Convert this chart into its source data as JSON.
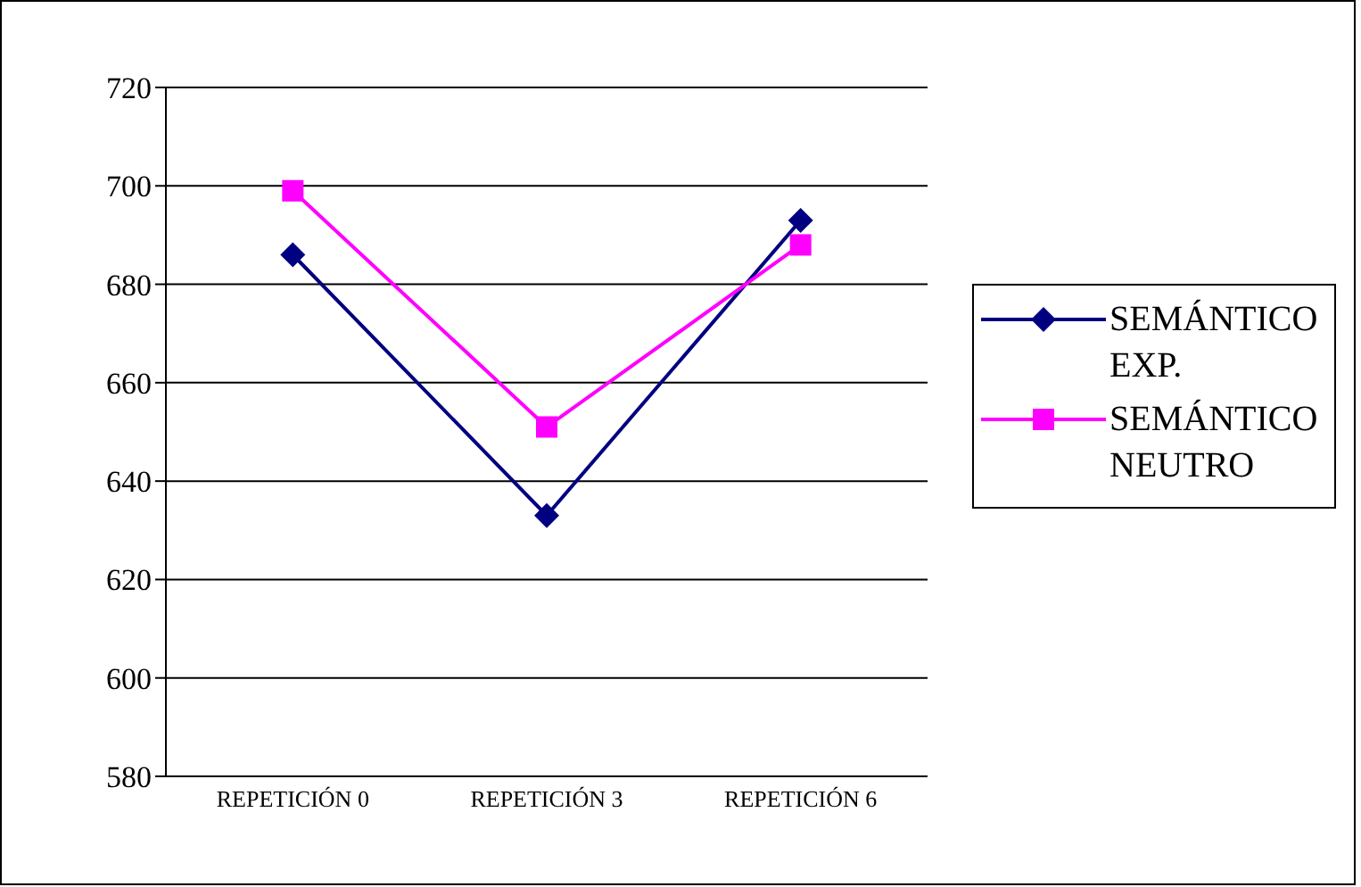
{
  "chart_data": {
    "type": "line",
    "categories": [
      "REPETICIÓN 0",
      "REPETICIÓN 3",
      "REPETICIÓN 6"
    ],
    "series": [
      {
        "name": "SEMÁNTICO EXP.",
        "color": "#000080",
        "values": [
          686,
          633,
          693
        ],
        "marker": "diamond"
      },
      {
        "name": "SEMÁNTICO NEUTRO",
        "color": "#ff00ff",
        "values": [
          699,
          651,
          688
        ],
        "marker": "square"
      }
    ],
    "ylim": [
      580,
      720
    ],
    "yticks": [
      580,
      600,
      620,
      640,
      660,
      680,
      700,
      720
    ],
    "grid": "y",
    "legend": "right"
  }
}
